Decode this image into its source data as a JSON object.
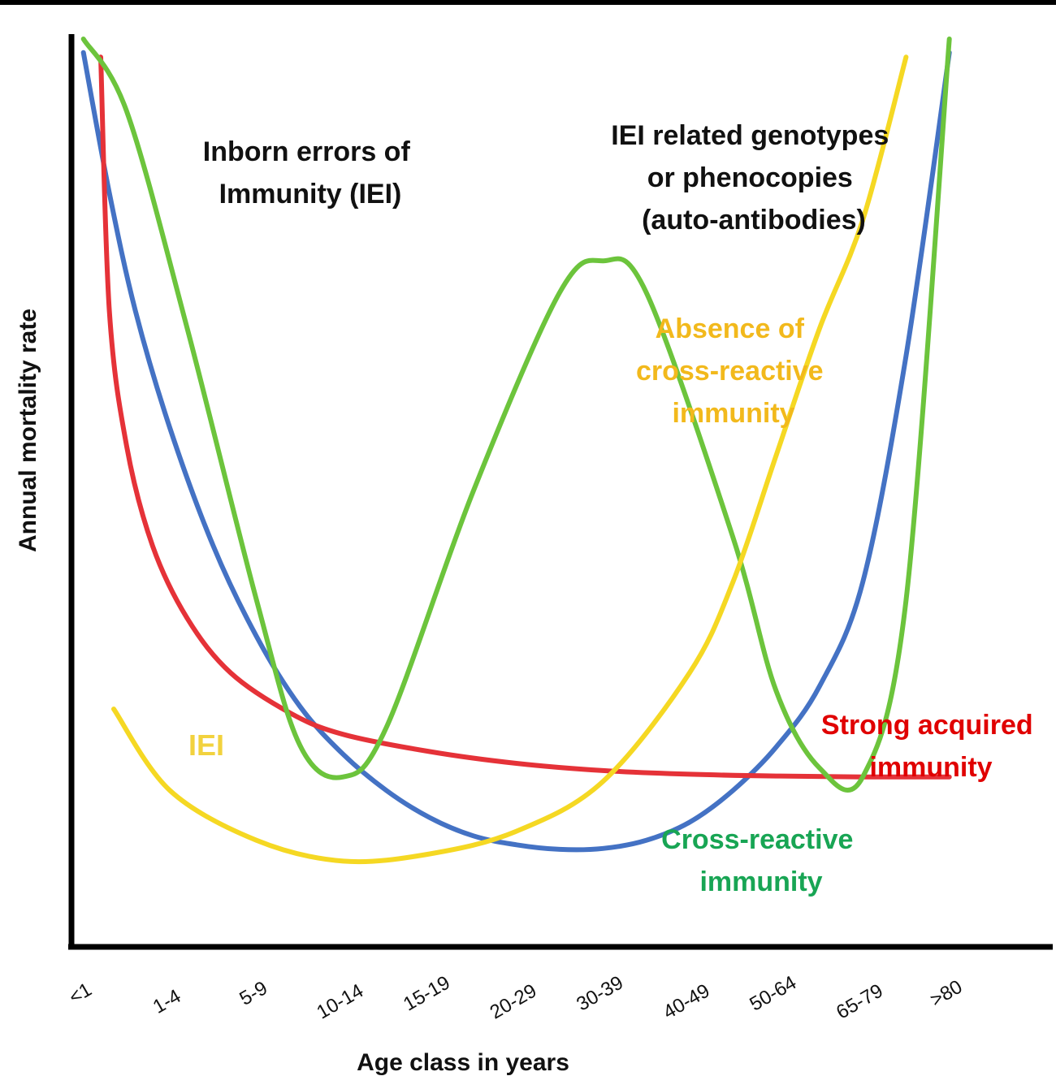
{
  "chart_data": {
    "type": "line",
    "title": "",
    "xlabel": "Age class in years",
    "ylabel": "Annual mortality rate",
    "categories": [
      "<1",
      "1-4",
      "5-9",
      "10-14",
      "15-19",
      "20-29",
      "30-39",
      "40-49",
      "50-64",
      "65-79",
      ">80"
    ],
    "x_range": [
      -0.1,
      10.2
    ],
    "y_range": [
      0,
      100
    ],
    "grid": false,
    "legend": "none",
    "colors": {
      "blue": "#4472C4",
      "red": "#E53238",
      "green": "#6CC43C",
      "yellow": "#F5D823",
      "annotation_black": "#111111",
      "annotation_yellow": "#F2B91C",
      "annotation_green": "#18A554",
      "annotation_red": "#E00000",
      "annotation_iei": "#F2D23E"
    },
    "series": [
      {
        "color": "#4472C4",
        "points": [
          [
            0,
            98.5
          ],
          [
            0.3,
            83
          ],
          [
            0.6,
            70
          ],
          [
            1.0,
            57
          ],
          [
            1.5,
            44
          ],
          [
            2.0,
            34
          ],
          [
            2.5,
            26.3
          ],
          [
            3.0,
            21
          ],
          [
            3.5,
            17
          ],
          [
            4.0,
            14
          ],
          [
            4.5,
            12
          ],
          [
            5.0,
            11
          ],
          [
            5.5,
            10.5
          ],
          [
            6.0,
            10.6
          ],
          [
            6.5,
            11.5
          ],
          [
            7.0,
            13.5
          ],
          [
            7.5,
            17
          ],
          [
            8.0,
            21.8
          ],
          [
            8.5,
            28.5
          ],
          [
            9.0,
            40
          ],
          [
            9.5,
            65
          ],
          [
            10.0,
            98.5
          ]
        ]
      },
      {
        "color": "#E53238",
        "points": [
          [
            0.2,
            98
          ],
          [
            0.3,
            70
          ],
          [
            0.5,
            55
          ],
          [
            0.8,
            44
          ],
          [
            1.2,
            36
          ],
          [
            1.7,
            30
          ],
          [
            2.4,
            25.5
          ],
          [
            3.0,
            23.2
          ],
          [
            4.0,
            21.3
          ],
          [
            5.0,
            20
          ],
          [
            6.0,
            19.2
          ],
          [
            7.0,
            18.8
          ],
          [
            8.0,
            18.6
          ],
          [
            9.0,
            18.5
          ],
          [
            10.0,
            18.5
          ]
        ]
      },
      {
        "color": "#6CC43C",
        "points": [
          [
            0,
            100
          ],
          [
            0.5,
            92
          ],
          [
            1.2,
            68
          ],
          [
            2.0,
            38
          ],
          [
            2.5,
            22
          ],
          [
            3.0,
            18.5
          ],
          [
            3.5,
            24
          ],
          [
            4.5,
            50
          ],
          [
            5.5,
            72
          ],
          [
            6.0,
            75.5
          ],
          [
            6.5,
            72
          ],
          [
            7.5,
            45
          ],
          [
            8.0,
            28
          ],
          [
            8.5,
            19.5
          ],
          [
            9.0,
            18.5
          ],
          [
            9.5,
            38
          ],
          [
            10.0,
            100
          ]
        ]
      },
      {
        "color": "#F5D823",
        "points": [
          [
            0.35,
            26
          ],
          [
            1,
            17
          ],
          [
            2,
            11.5
          ],
          [
            3,
            9.2
          ],
          [
            4,
            10
          ],
          [
            5,
            12.5
          ],
          [
            6,
            18
          ],
          [
            7,
            30
          ],
          [
            7.5,
            40
          ],
          [
            8,
            54
          ],
          [
            8.5,
            68
          ],
          [
            9,
            80
          ],
          [
            9.5,
            98
          ]
        ]
      }
    ],
    "annotations": [
      {
        "lines": [
          "Inborn errors of",
          "Immunity (IEI)"
        ]
      },
      {
        "lines": [
          "IEI related genotypes",
          "or phenocopies",
          "(auto-antibodies)"
        ]
      },
      {
        "lines": [
          "Absence of",
          "cross-reactive",
          "immunity"
        ]
      },
      {
        "lines": [
          "IEI"
        ]
      },
      {
        "lines": [
          "Strong acquired",
          "immunity"
        ]
      },
      {
        "lines": [
          "Cross-reactive",
          "immunity"
        ]
      }
    ]
  }
}
